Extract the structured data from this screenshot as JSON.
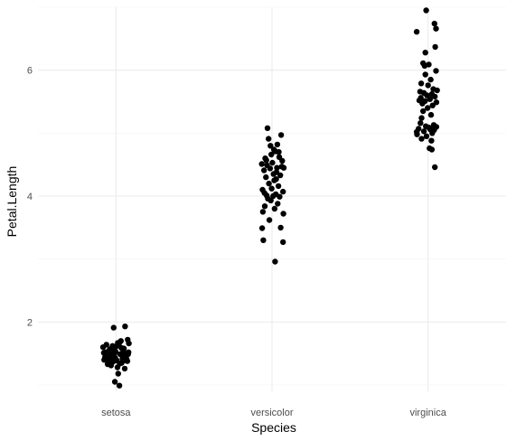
{
  "chart_data": {
    "type": "scatter",
    "title": "",
    "xlabel": "Species",
    "ylabel": "Petal.Length",
    "categories": [
      "setosa",
      "versicolor",
      "virginica"
    ],
    "ylim": [
      0.9,
      7.0
    ],
    "y_ticks": [
      2,
      4,
      6
    ],
    "y_tick_labels": [
      "2",
      "4",
      "6"
    ],
    "grid": true,
    "legend": "none",
    "point_color": "#000000",
    "series": [
      {
        "values": [
          {
            "category": "setosa",
            "jitter": -0.31,
            "y": 1.4
          },
          {
            "category": "setosa",
            "jitter": -0.18,
            "y": 1.55
          },
          {
            "category": "setosa",
            "jitter": 0.04,
            "y": 1.28
          },
          {
            "category": "setosa",
            "jitter": 0.27,
            "y": 1.46
          },
          {
            "category": "setosa",
            "jitter": -0.09,
            "y": 1.62
          },
          {
            "category": "setosa",
            "jitter": 0.15,
            "y": 1.35
          },
          {
            "category": "setosa",
            "jitter": -0.24,
            "y": 1.47
          },
          {
            "category": "setosa",
            "jitter": 0.33,
            "y": 1.52
          },
          {
            "category": "setosa",
            "jitter": -0.02,
            "y": 1.43
          },
          {
            "category": "setosa",
            "jitter": 0.21,
            "y": 1.58
          },
          {
            "category": "setosa",
            "jitter": -0.34,
            "y": 1.6
          },
          {
            "category": "setosa",
            "jitter": 0.08,
            "y": 1.66
          },
          {
            "category": "setosa",
            "jitter": -0.13,
            "y": 1.31
          },
          {
            "category": "setosa",
            "jitter": 0.3,
            "y": 1.38
          },
          {
            "category": "setosa",
            "jitter": -0.27,
            "y": 1.52
          },
          {
            "category": "setosa",
            "jitter": 0.11,
            "y": 1.49
          },
          {
            "category": "setosa",
            "jitter": -0.06,
            "y": 1.91
          },
          {
            "category": "setosa",
            "jitter": 0.24,
            "y": 1.93
          },
          {
            "category": "setosa",
            "jitter": -0.2,
            "y": 1.36
          },
          {
            "category": "setosa",
            "jitter": 0.17,
            "y": 1.42
          },
          {
            "category": "setosa",
            "jitter": -0.11,
            "y": 1.5
          },
          {
            "category": "setosa",
            "jitter": 0.02,
            "y": 1.39
          },
          {
            "category": "setosa",
            "jitter": 0.34,
            "y": 1.66
          },
          {
            "category": "setosa",
            "jitter": -0.29,
            "y": 1.44
          },
          {
            "category": "setosa",
            "jitter": 0.13,
            "y": 1.7
          },
          {
            "category": "setosa",
            "jitter": -0.16,
            "y": 1.57
          },
          {
            "category": "setosa",
            "jitter": 0.06,
            "y": 1.18
          },
          {
            "category": "setosa",
            "jitter": -0.03,
            "y": 1.05
          },
          {
            "category": "setosa",
            "jitter": 0.09,
            "y": 0.99
          },
          {
            "category": "setosa",
            "jitter": 0.28,
            "y": 1.41
          },
          {
            "category": "setosa",
            "jitter": -0.08,
            "y": 1.37
          },
          {
            "category": "setosa",
            "jitter": 0.19,
            "y": 1.53
          },
          {
            "category": "setosa",
            "jitter": -0.22,
            "y": 1.33
          },
          {
            "category": "setosa",
            "jitter": 0.0,
            "y": 1.61
          },
          {
            "category": "setosa",
            "jitter": 0.31,
            "y": 1.72
          },
          {
            "category": "setosa",
            "jitter": -0.14,
            "y": 1.45
          },
          {
            "category": "setosa",
            "jitter": 0.23,
            "y": 1.26
          },
          {
            "category": "setosa",
            "jitter": -0.05,
            "y": 1.48
          },
          {
            "category": "setosa",
            "jitter": 0.14,
            "y": 1.59
          },
          {
            "category": "setosa",
            "jitter": -0.32,
            "y": 1.51
          },
          {
            "category": "setosa",
            "jitter": -0.19,
            "y": 1.42
          },
          {
            "category": "setosa",
            "jitter": 0.05,
            "y": 1.67
          },
          {
            "category": "setosa",
            "jitter": 0.26,
            "y": 1.39
          },
          {
            "category": "setosa",
            "jitter": -0.1,
            "y": 1.55
          },
          {
            "category": "setosa",
            "jitter": 0.18,
            "y": 1.46
          },
          {
            "category": "setosa",
            "jitter": -0.25,
            "y": 1.64
          },
          {
            "category": "setosa",
            "jitter": 0.1,
            "y": 1.34
          },
          {
            "category": "setosa",
            "jitter": -0.01,
            "y": 1.53
          },
          {
            "category": "setosa",
            "jitter": 0.32,
            "y": 1.49
          },
          {
            "category": "setosa",
            "jitter": -0.17,
            "y": 1.4
          },
          {
            "category": "versicolor",
            "jitter": -0.12,
            "y": 5.08
          },
          {
            "category": "versicolor",
            "jitter": 0.24,
            "y": 4.97
          },
          {
            "category": "versicolor",
            "jitter": 0.14,
            "y": 4.82
          },
          {
            "category": "versicolor",
            "jitter": -0.09,
            "y": 4.91
          },
          {
            "category": "versicolor",
            "jitter": 0.05,
            "y": 4.74
          },
          {
            "category": "versicolor",
            "jitter": 0.18,
            "y": 4.7
          },
          {
            "category": "versicolor",
            "jitter": -0.02,
            "y": 4.66
          },
          {
            "category": "versicolor",
            "jitter": 0.09,
            "y": 4.71
          },
          {
            "category": "versicolor",
            "jitter": -0.18,
            "y": 4.6
          },
          {
            "category": "versicolor",
            "jitter": 0.27,
            "y": 4.56
          },
          {
            "category": "versicolor",
            "jitter": 0.31,
            "y": 4.45
          },
          {
            "category": "versicolor",
            "jitter": -0.13,
            "y": 4.49
          },
          {
            "category": "versicolor",
            "jitter": 0.01,
            "y": 4.53
          },
          {
            "category": "versicolor",
            "jitter": -0.21,
            "y": 4.41
          },
          {
            "category": "versicolor",
            "jitter": 0.12,
            "y": 4.38
          },
          {
            "category": "versicolor",
            "jitter": -0.05,
            "y": 4.44
          },
          {
            "category": "versicolor",
            "jitter": 0.22,
            "y": 4.33
          },
          {
            "category": "versicolor",
            "jitter": -0.16,
            "y": 4.3
          },
          {
            "category": "versicolor",
            "jitter": 0.06,
            "y": 4.25
          },
          {
            "category": "versicolor",
            "jitter": -0.08,
            "y": 4.2
          },
          {
            "category": "versicolor",
            "jitter": 0.17,
            "y": 4.16
          },
          {
            "category": "versicolor",
            "jitter": -0.25,
            "y": 4.1
          },
          {
            "category": "versicolor",
            "jitter": 0.29,
            "y": 4.07
          },
          {
            "category": "versicolor",
            "jitter": -0.2,
            "y": 4.05
          },
          {
            "category": "versicolor",
            "jitter": 0.1,
            "y": 4.03
          },
          {
            "category": "versicolor",
            "jitter": 0.03,
            "y": 4.0
          },
          {
            "category": "versicolor",
            "jitter": -0.11,
            "y": 3.96
          },
          {
            "category": "versicolor",
            "jitter": 0.2,
            "y": 3.99
          },
          {
            "category": "versicolor",
            "jitter": -0.03,
            "y": 3.93
          },
          {
            "category": "versicolor",
            "jitter": 0.15,
            "y": 3.88
          },
          {
            "category": "versicolor",
            "jitter": -0.19,
            "y": 3.84
          },
          {
            "category": "versicolor",
            "jitter": 0.07,
            "y": 3.8
          },
          {
            "category": "versicolor",
            "jitter": -0.24,
            "y": 3.75
          },
          {
            "category": "versicolor",
            "jitter": 0.3,
            "y": 3.72
          },
          {
            "category": "versicolor",
            "jitter": -0.07,
            "y": 3.62
          },
          {
            "category": "versicolor",
            "jitter": 0.23,
            "y": 3.5
          },
          {
            "category": "versicolor",
            "jitter": -0.26,
            "y": 3.49
          },
          {
            "category": "versicolor",
            "jitter": 0.29,
            "y": 3.27
          },
          {
            "category": "versicolor",
            "jitter": -0.23,
            "y": 3.3
          },
          {
            "category": "versicolor",
            "jitter": 0.08,
            "y": 2.96
          },
          {
            "category": "versicolor",
            "jitter": -0.15,
            "y": 4.57
          },
          {
            "category": "versicolor",
            "jitter": 0.26,
            "y": 4.47
          },
          {
            "category": "versicolor",
            "jitter": -0.01,
            "y": 4.12
          },
          {
            "category": "versicolor",
            "jitter": 0.13,
            "y": 4.45
          },
          {
            "category": "versicolor",
            "jitter": -0.27,
            "y": 4.51
          },
          {
            "category": "versicolor",
            "jitter": 0.19,
            "y": 4.62
          },
          {
            "category": "versicolor",
            "jitter": -0.04,
            "y": 4.8
          },
          {
            "category": "versicolor",
            "jitter": 0.11,
            "y": 4.27
          },
          {
            "category": "versicolor",
            "jitter": -0.14,
            "y": 4.01
          },
          {
            "category": "versicolor",
            "jitter": 0.04,
            "y": 4.35
          },
          {
            "category": "virginica",
            "jitter": -0.05,
            "y": 6.95
          },
          {
            "category": "virginica",
            "jitter": 0.17,
            "y": 6.74
          },
          {
            "category": "virginica",
            "jitter": 0.21,
            "y": 6.66
          },
          {
            "category": "virginica",
            "jitter": -0.3,
            "y": 6.61
          },
          {
            "category": "virginica",
            "jitter": 0.19,
            "y": 6.37
          },
          {
            "category": "virginica",
            "jitter": -0.07,
            "y": 6.28
          },
          {
            "category": "virginica",
            "jitter": -0.13,
            "y": 6.11
          },
          {
            "category": "virginica",
            "jitter": 0.02,
            "y": 6.09
          },
          {
            "category": "virginica",
            "jitter": -0.09,
            "y": 6.07
          },
          {
            "category": "virginica",
            "jitter": 0.21,
            "y": 5.99
          },
          {
            "category": "virginica",
            "jitter": -0.07,
            "y": 5.93
          },
          {
            "category": "virginica",
            "jitter": 0.07,
            "y": 5.85
          },
          {
            "category": "virginica",
            "jitter": -0.18,
            "y": 5.79
          },
          {
            "category": "virginica",
            "jitter": 0.0,
            "y": 5.76
          },
          {
            "category": "virginica",
            "jitter": 0.14,
            "y": 5.7
          },
          {
            "category": "virginica",
            "jitter": -0.21,
            "y": 5.66
          },
          {
            "category": "virginica",
            "jitter": -0.11,
            "y": 5.64
          },
          {
            "category": "virginica",
            "jitter": 0.1,
            "y": 5.62
          },
          {
            "category": "virginica",
            "jitter": -0.03,
            "y": 5.6
          },
          {
            "category": "virginica",
            "jitter": 0.18,
            "y": 5.58
          },
          {
            "category": "virginica",
            "jitter": -0.19,
            "y": 5.56
          },
          {
            "category": "virginica",
            "jitter": 0.05,
            "y": 5.54
          },
          {
            "category": "virginica",
            "jitter": -0.08,
            "y": 5.51
          },
          {
            "category": "virginica",
            "jitter": 0.22,
            "y": 5.49
          },
          {
            "category": "virginica",
            "jitter": -0.15,
            "y": 5.47
          },
          {
            "category": "virginica",
            "jitter": 0.12,
            "y": 5.44
          },
          {
            "category": "virginica",
            "jitter": -0.01,
            "y": 5.4
          },
          {
            "category": "virginica",
            "jitter": -0.13,
            "y": 5.35
          },
          {
            "category": "virginica",
            "jitter": 0.08,
            "y": 5.29
          },
          {
            "category": "virginica",
            "jitter": -0.17,
            "y": 5.24
          },
          {
            "category": "virginica",
            "jitter": -0.2,
            "y": 5.16
          },
          {
            "category": "virginica",
            "jitter": 0.15,
            "y": 5.13
          },
          {
            "category": "virginica",
            "jitter": -0.06,
            "y": 5.11
          },
          {
            "category": "virginica",
            "jitter": 0.22,
            "y": 5.1
          },
          {
            "category": "virginica",
            "jitter": 0.02,
            "y": 5.09
          },
          {
            "category": "virginica",
            "jitter": -0.25,
            "y": 5.07
          },
          {
            "category": "virginica",
            "jitter": 0.06,
            "y": 5.06
          },
          {
            "category": "virginica",
            "jitter": 0.16,
            "y": 5.05
          },
          {
            "category": "virginica",
            "jitter": -0.11,
            "y": 5.03
          },
          {
            "category": "virginica",
            "jitter": -0.3,
            "y": 5.02
          },
          {
            "category": "virginica",
            "jitter": 0.11,
            "y": 5.0
          },
          {
            "category": "virginica",
            "jitter": -0.29,
            "y": 4.98
          },
          {
            "category": "virginica",
            "jitter": -0.04,
            "y": 4.95
          },
          {
            "category": "virginica",
            "jitter": -0.17,
            "y": 4.91
          },
          {
            "category": "virginica",
            "jitter": 0.09,
            "y": 4.88
          },
          {
            "category": "virginica",
            "jitter": 0.04,
            "y": 4.76
          },
          {
            "category": "virginica",
            "jitter": 0.1,
            "y": 4.74
          },
          {
            "category": "virginica",
            "jitter": 0.18,
            "y": 4.46
          },
          {
            "category": "virginica",
            "jitter": -0.23,
            "y": 5.52
          },
          {
            "category": "virginica",
            "jitter": 0.24,
            "y": 5.68
          }
        ]
      }
    ]
  }
}
